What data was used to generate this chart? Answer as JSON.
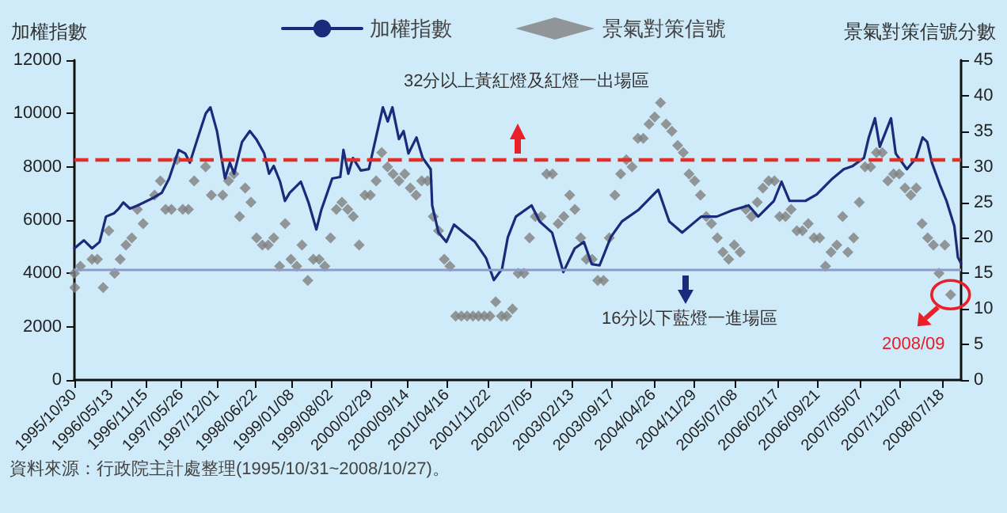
{
  "chart_data": {
    "type": "line",
    "ylabel": "加權指數",
    "y2label": "景氣對策信號分數",
    "annotations": [
      "32分以上黃紅燈及紅燈一出場區",
      "16分以下藍燈一進場區",
      "2008/09",
      "資料來源：行政院主計處整理(1995/10/31~2008/10/27)。"
    ],
    "legend": "top",
    "grid": false,
    "xlim": [
      "1995-10-30",
      "2008-10-27"
    ],
    "xticks": [
      {
        "value": "1995-10-30",
        "label": "1995/10/30"
      },
      {
        "value": "1996-05-13",
        "label": "1996/05/13"
      },
      {
        "value": "1996-11-15",
        "label": "1996/11/15"
      },
      {
        "value": "1997-05-26",
        "label": "1997/05/26"
      },
      {
        "value": "1997-12-01",
        "label": "1997/12/01"
      },
      {
        "value": "1998-06-22",
        "label": "1998/06/22"
      },
      {
        "value": "1999-01-08",
        "label": "1999/01/08"
      },
      {
        "value": "1999-08-02",
        "label": "1999/08/02"
      },
      {
        "value": "2000-02-29",
        "label": "2000/02/29"
      },
      {
        "value": "2000-09-14",
        "label": "2000/09/14"
      },
      {
        "value": "2001-04-16",
        "label": "2001/04/16"
      },
      {
        "value": "2001-11-22",
        "label": "2001/11/22"
      },
      {
        "value": "2002-07-05",
        "label": "2002/07/05"
      },
      {
        "value": "2003-02-13",
        "label": "2003/02/13"
      },
      {
        "value": "2003-09-17",
        "label": "2003/09/17"
      },
      {
        "value": "2004-04-26",
        "label": "2004/04/26"
      },
      {
        "value": "2004-11-29",
        "label": "2004/11/29"
      },
      {
        "value": "2005-07-08",
        "label": "2005/07/08"
      },
      {
        "value": "2006-02-17",
        "label": "2006/02/17"
      },
      {
        "value": "2006-09-21",
        "label": "2006/09/21"
      },
      {
        "value": "2007-05-07",
        "label": "2007/05/07"
      },
      {
        "value": "2007-12-07",
        "label": "2007/12/07"
      },
      {
        "value": "2008-07-18",
        "label": "2008/07/18"
      }
    ],
    "ylim": [
      0,
      12000
    ],
    "yticks": [
      0,
      2000,
      4000,
      6000,
      8000,
      10000,
      12000
    ],
    "y2lim": [
      0,
      45
    ],
    "y2ticks": [
      0,
      5,
      10,
      15,
      20,
      25,
      30,
      35,
      40,
      45
    ],
    "ref_lines": [
      {
        "axis": "y",
        "value": 8300,
        "color": "#e0302a",
        "line_style": "dashed"
      },
      {
        "axis": "y",
        "value": 4150,
        "color": "#8c9cc8",
        "line_style": "solid"
      }
    ],
    "series": [
      {
        "name": "加權指數",
        "color": "#1b2a7a",
        "marker": "none",
        "line_style": "solid",
        "x": [
          "1995-10-30",
          "1995-12-20",
          "1996-02-01",
          "1996-03-13",
          "1996-04-16",
          "1996-05-28",
          "1996-06-23",
          "1996-07-18",
          "1996-08-22",
          "1996-10-03",
          "1996-12-27",
          "1997-02-08",
          "1997-03-20",
          "1997-05-10",
          "1997-06-14",
          "1997-07-09",
          "1997-08-21",
          "1997-10-02",
          "1997-10-27",
          "1997-12-01",
          "1998-01-13",
          "1998-02-08",
          "1998-03-03",
          "1998-04-14",
          "1998-05-26",
          "1998-06-29",
          "1998-08-11",
          "1998-09-06",
          "1998-10-01",
          "1998-11-04",
          "1998-11-30",
          "1998-12-25",
          "1999-02-23",
          "1999-04-05",
          "1999-05-17",
          "1999-06-12",
          "1999-08-10",
          "1999-09-22",
          "1999-10-09",
          "1999-11-04",
          "1999-11-29",
          "2000-01-10",
          "2000-02-22",
          "2000-04-04",
          "2000-05-07",
          "2000-06-02",
          "2000-06-27",
          "2000-08-01",
          "2000-08-26",
          "2000-09-21",
          "2000-11-03",
          "2000-12-06",
          "2001-01-18",
          "2001-01-26",
          "2001-03-01",
          "2001-04-12",
          "2001-05-23",
          "2001-07-13",
          "2001-09-12",
          "2001-11-10",
          "2001-12-22",
          "2002-02-04",
          "2002-03-07",
          "2002-04-19",
          "2002-07-12",
          "2002-08-24",
          "2002-10-30",
          "2002-12-29",
          "2003-02-28",
          "2003-04-18",
          "2003-05-30",
          "2003-07-11",
          "2003-09-09",
          "2003-11-08",
          "2004-02-02",
          "2004-04-25",
          "2004-05-20",
          "2004-07-18",
          "2004-09-25",
          "2005-01-05",
          "2005-03-29",
          "2005-06-22",
          "2005-09-16",
          "2005-11-06",
          "2006-01-29",
          "2006-03-11",
          "2006-04-23",
          "2006-07-17",
          "2006-09-15",
          "2006-12-09",
          "2007-02-07",
          "2007-03-27",
          "2007-05-26",
          "2007-06-21",
          "2007-07-24",
          "2007-08-19",
          "2007-10-18",
          "2007-11-12",
          "2008-01-11",
          "2008-03-01",
          "2008-04-04",
          "2008-04-29",
          "2008-05-24",
          "2008-07-06",
          "2008-08-10",
          "2008-09-21",
          "2008-10-10",
          "2008-10-27"
        ],
        "values": [
          4940,
          5240,
          4940,
          5180,
          6130,
          6250,
          6430,
          6660,
          6430,
          6550,
          6840,
          7020,
          7560,
          8630,
          8500,
          8150,
          9100,
          10000,
          10230,
          9340,
          7560,
          8150,
          7740,
          8930,
          9340,
          9040,
          8500,
          7740,
          8030,
          7440,
          6720,
          7020,
          7440,
          6660,
          5650,
          6370,
          7560,
          7620,
          8630,
          7740,
          8330,
          7860,
          7910,
          9220,
          10230,
          9700,
          10230,
          9040,
          9340,
          8500,
          9100,
          8330,
          7910,
          6550,
          5530,
          5180,
          5830,
          5530,
          5180,
          4580,
          3750,
          4170,
          5360,
          6130,
          6550,
          5950,
          5530,
          4050,
          4940,
          5180,
          4350,
          4300,
          5360,
          5950,
          6370,
          6960,
          7140,
          5950,
          5530,
          6130,
          6130,
          6370,
          6550,
          6130,
          6720,
          7440,
          6720,
          6720,
          6960,
          7560,
          7910,
          8030,
          8330,
          9100,
          9820,
          8750,
          9820,
          8500,
          7910,
          8330,
          9100,
          8930,
          8150,
          7320,
          6720,
          5770,
          4600,
          4370
        ]
      },
      {
        "name": "景氣對策信號",
        "type": "scatter",
        "axis": "y2",
        "color": "#808080",
        "marker": "diamond",
        "x": [
          "1995-10-30",
          "1995-11",
          "1995-12",
          "1996-02",
          "1996-03",
          "1996-04",
          "1996-05",
          "1996-06",
          "1996-07",
          "1996-08",
          "1996-09",
          "1996-10",
          "1996-11",
          "1997-01",
          "1997-02",
          "1997-03",
          "1997-04",
          "1997-05",
          "1997-06",
          "1997-07",
          "1997-08",
          "1997-10",
          "1997-11",
          "1998-01",
          "1998-02",
          "1998-03",
          "1998-04",
          "1998-05",
          "1998-06",
          "1998-07",
          "1998-08",
          "1998-09",
          "1998-10",
          "1998-11",
          "1998-12",
          "1999-01",
          "1999-02",
          "1999-03",
          "1999-04",
          "1999-05",
          "1999-06",
          "1999-07",
          "1999-08",
          "1999-09",
          "1999-10",
          "1999-11",
          "1999-12",
          "2000-01",
          "2000-02",
          "2000-03",
          "2000-04",
          "2000-05",
          "2000-06",
          "2000-07",
          "2000-08",
          "2000-09",
          "2000-10",
          "2000-11",
          "2000-12",
          "2001-01",
          "2001-02",
          "2001-03",
          "2001-04",
          "2001-05",
          "2001-06",
          "2001-07",
          "2001-08",
          "2001-09",
          "2001-10",
          "2001-11",
          "2001-12",
          "2002-01",
          "2002-02",
          "2002-03",
          "2002-04",
          "2002-05",
          "2002-06",
          "2002-07",
          "2002-08",
          "2002-09",
          "2002-10",
          "2002-11",
          "2002-12",
          "2003-01",
          "2003-02",
          "2003-03",
          "2003-04",
          "2003-05",
          "2003-06",
          "2003-07",
          "2003-08",
          "2003-09",
          "2003-10",
          "2003-11",
          "2003-12",
          "2004-01",
          "2004-02",
          "2004-03",
          "2004-04",
          "2004-05",
          "2004-06",
          "2004-07",
          "2004-08",
          "2004-09",
          "2004-10",
          "2004-11",
          "2004-12",
          "2005-01",
          "2005-02",
          "2005-03",
          "2005-04",
          "2005-05",
          "2005-06",
          "2005-07",
          "2005-08",
          "2005-09",
          "2005-10",
          "2005-11",
          "2005-12",
          "2006-01",
          "2006-02",
          "2006-03",
          "2006-04",
          "2006-05",
          "2006-06",
          "2006-07",
          "2006-08",
          "2006-09",
          "2006-10",
          "2006-11",
          "2006-12",
          "2007-01",
          "2007-02",
          "2007-03",
          "2007-04",
          "2007-05",
          "2007-06",
          "2007-07",
          "2007-08",
          "2007-09",
          "2007-10",
          "2007-11",
          "2007-12",
          "2008-01",
          "2008-02",
          "2008-03",
          "2008-04",
          "2008-05",
          "2008-06",
          "2008-07",
          "2008-08",
          "2008-09"
        ],
        "values": [
          15,
          13,
          16,
          17,
          17,
          13,
          21,
          15,
          17,
          19,
          20,
          24,
          22,
          26,
          28,
          24,
          24,
          31,
          24,
          24,
          28,
          30,
          26,
          26,
          28,
          29,
          23,
          27,
          25,
          20,
          19,
          19,
          20,
          16,
          22,
          17,
          16,
          19,
          14,
          17,
          17,
          16,
          20,
          24,
          25,
          24,
          23,
          19,
          26,
          26,
          28,
          32,
          30,
          29,
          28,
          29,
          27,
          26,
          28,
          28,
          23,
          21,
          17,
          16,
          9,
          9,
          9,
          9,
          9,
          9,
          9,
          11,
          9,
          9,
          10,
          15,
          15,
          20,
          23,
          23,
          29,
          29,
          22,
          23,
          26,
          24,
          20,
          17,
          17,
          14,
          14,
          20,
          26,
          29,
          31,
          30,
          34,
          34,
          36,
          37,
          39,
          36,
          35,
          33,
          32,
          29,
          28,
          26,
          23,
          22,
          20,
          18,
          17,
          19,
          18,
          24,
          23,
          25,
          27,
          28,
          28,
          23,
          23,
          24,
          21,
          21,
          22,
          20,
          20,
          16,
          18,
          19,
          23,
          18,
          20,
          25,
          30,
          30,
          32,
          32,
          28,
          29,
          29,
          27,
          26,
          27,
          22,
          20,
          19,
          15,
          19,
          12
        ]
      }
    ]
  }
}
